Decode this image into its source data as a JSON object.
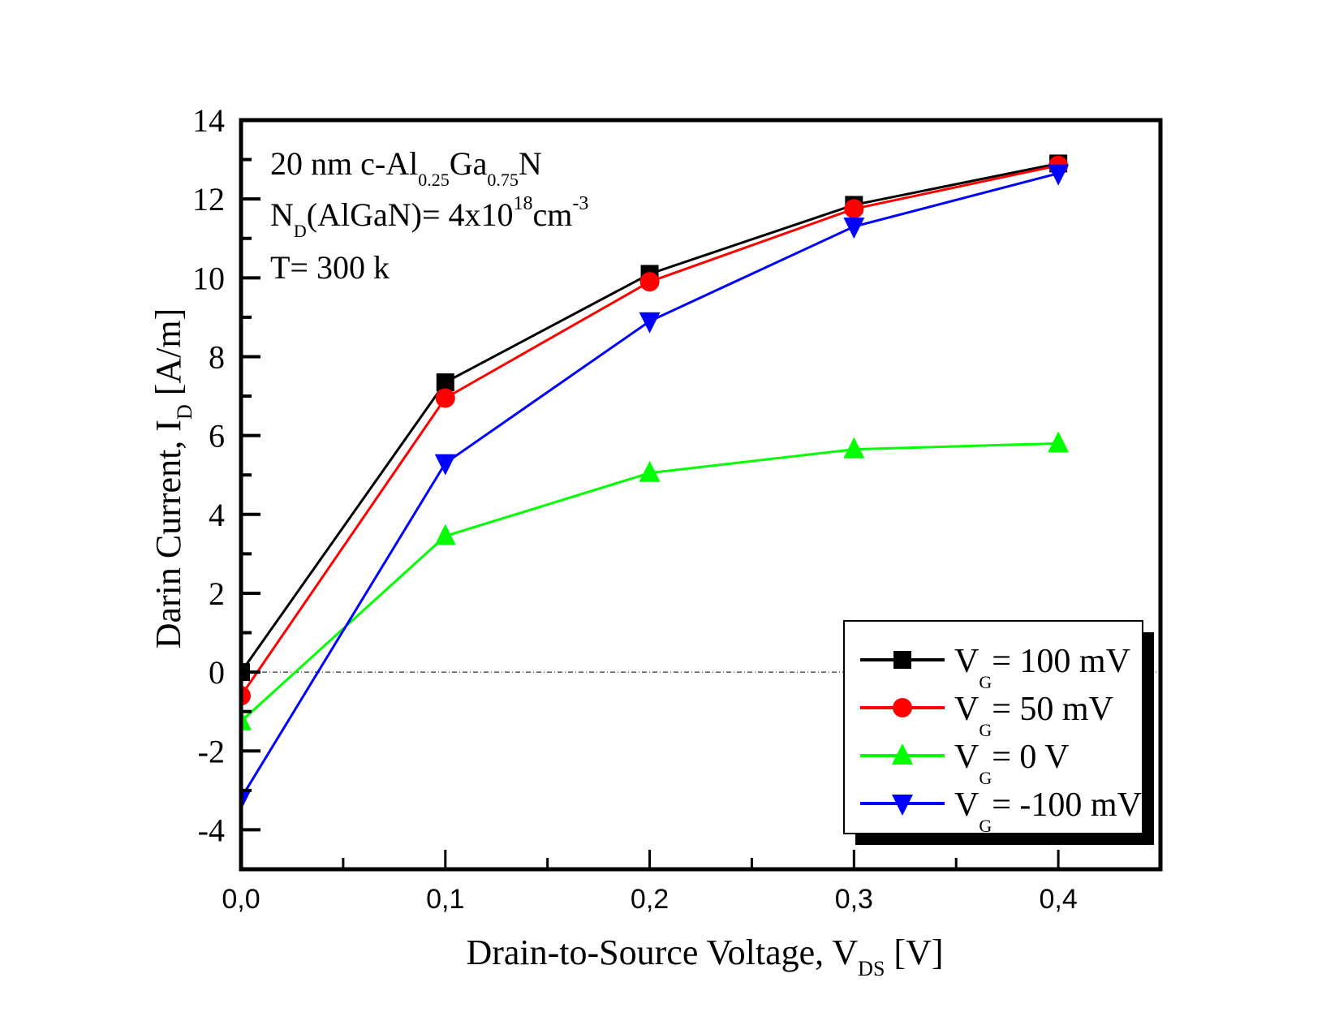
{
  "chart_data": {
    "type": "line",
    "title": "",
    "xlabel": "Drain-to-Source Voltage, V",
    "xlabel_sub": "DS",
    "xlabel_suffix": " [V]",
    "ylabel": "Darin Current, I",
    "ylabel_sub": "D",
    "ylabel_suffix": " [A/m]",
    "xlim": [
      0,
      0.45
    ],
    "ylim": [
      -5,
      14
    ],
    "xticks": [
      0,
      0.1,
      0.2,
      0.3,
      0.4
    ],
    "xtick_labels": [
      "0,0",
      "0,1",
      "0,2",
      "0,3",
      "0,4"
    ],
    "xminor_ticks": [
      0.05,
      0.15,
      0.25,
      0.35
    ],
    "yticks": [
      -4,
      -2,
      0,
      2,
      4,
      6,
      8,
      10,
      12,
      14
    ],
    "ytick_labels": [
      "-4",
      "-2",
      "0",
      "2",
      "4",
      "6",
      "8",
      "10",
      "12",
      "14"
    ],
    "yminor_ticks": [
      -3,
      -1,
      1,
      3,
      5,
      7,
      9,
      11,
      13
    ],
    "grid": false,
    "reference_line": {
      "y": 0,
      "style": "dash-dot"
    },
    "x": [
      0,
      0.1,
      0.2,
      0.3,
      0.4
    ],
    "series": [
      {
        "name": "V_G = 100 mV",
        "label_main": "V",
        "label_sub": "G",
        "label_rest": "= 100 mV",
        "color": "#000000",
        "marker": "square",
        "values": [
          0.0,
          7.35,
          10.1,
          11.85,
          12.9
        ]
      },
      {
        "name": "V_G = 50 mV",
        "label_main": "V",
        "label_sub": "G",
        "label_rest": "= 50 mV",
        "color": "#ff0000",
        "marker": "circle",
        "values": [
          -0.6,
          6.95,
          9.9,
          11.75,
          12.85
        ]
      },
      {
        "name": "V_G = 0 V",
        "label_main": "V",
        "label_sub": "G",
        "label_rest": "= 0 V",
        "color": "#00ff00",
        "marker": "triangle-up",
        "values": [
          -1.25,
          3.45,
          5.05,
          5.65,
          5.8
        ]
      },
      {
        "name": "V_G = -100 mV",
        "label_main": "V",
        "label_sub": "G",
        "label_rest": "= -100 mV",
        "color": "#0000ff",
        "marker": "triangle-down",
        "values": [
          -3.2,
          5.3,
          8.9,
          11.3,
          12.65
        ]
      }
    ],
    "legend": {
      "placement": "bottom-right",
      "shadow": true
    },
    "annotations": [
      {
        "parts": [
          [
            "20 nm c-Al",
            ""
          ],
          [
            "0.25",
            "sub"
          ],
          [
            "Ga",
            ""
          ],
          [
            "0.75",
            "sub"
          ],
          [
            "N",
            ""
          ]
        ]
      },
      {
        "parts": [
          [
            "N",
            ""
          ],
          [
            "D",
            "sub"
          ],
          [
            "(AlGaN)= 4x10",
            ""
          ],
          [
            "18",
            "sup"
          ],
          [
            "cm",
            ""
          ],
          [
            "-3",
            "sup"
          ]
        ]
      },
      {
        "parts": [
          [
            "T= 300 k",
            ""
          ]
        ]
      }
    ]
  }
}
